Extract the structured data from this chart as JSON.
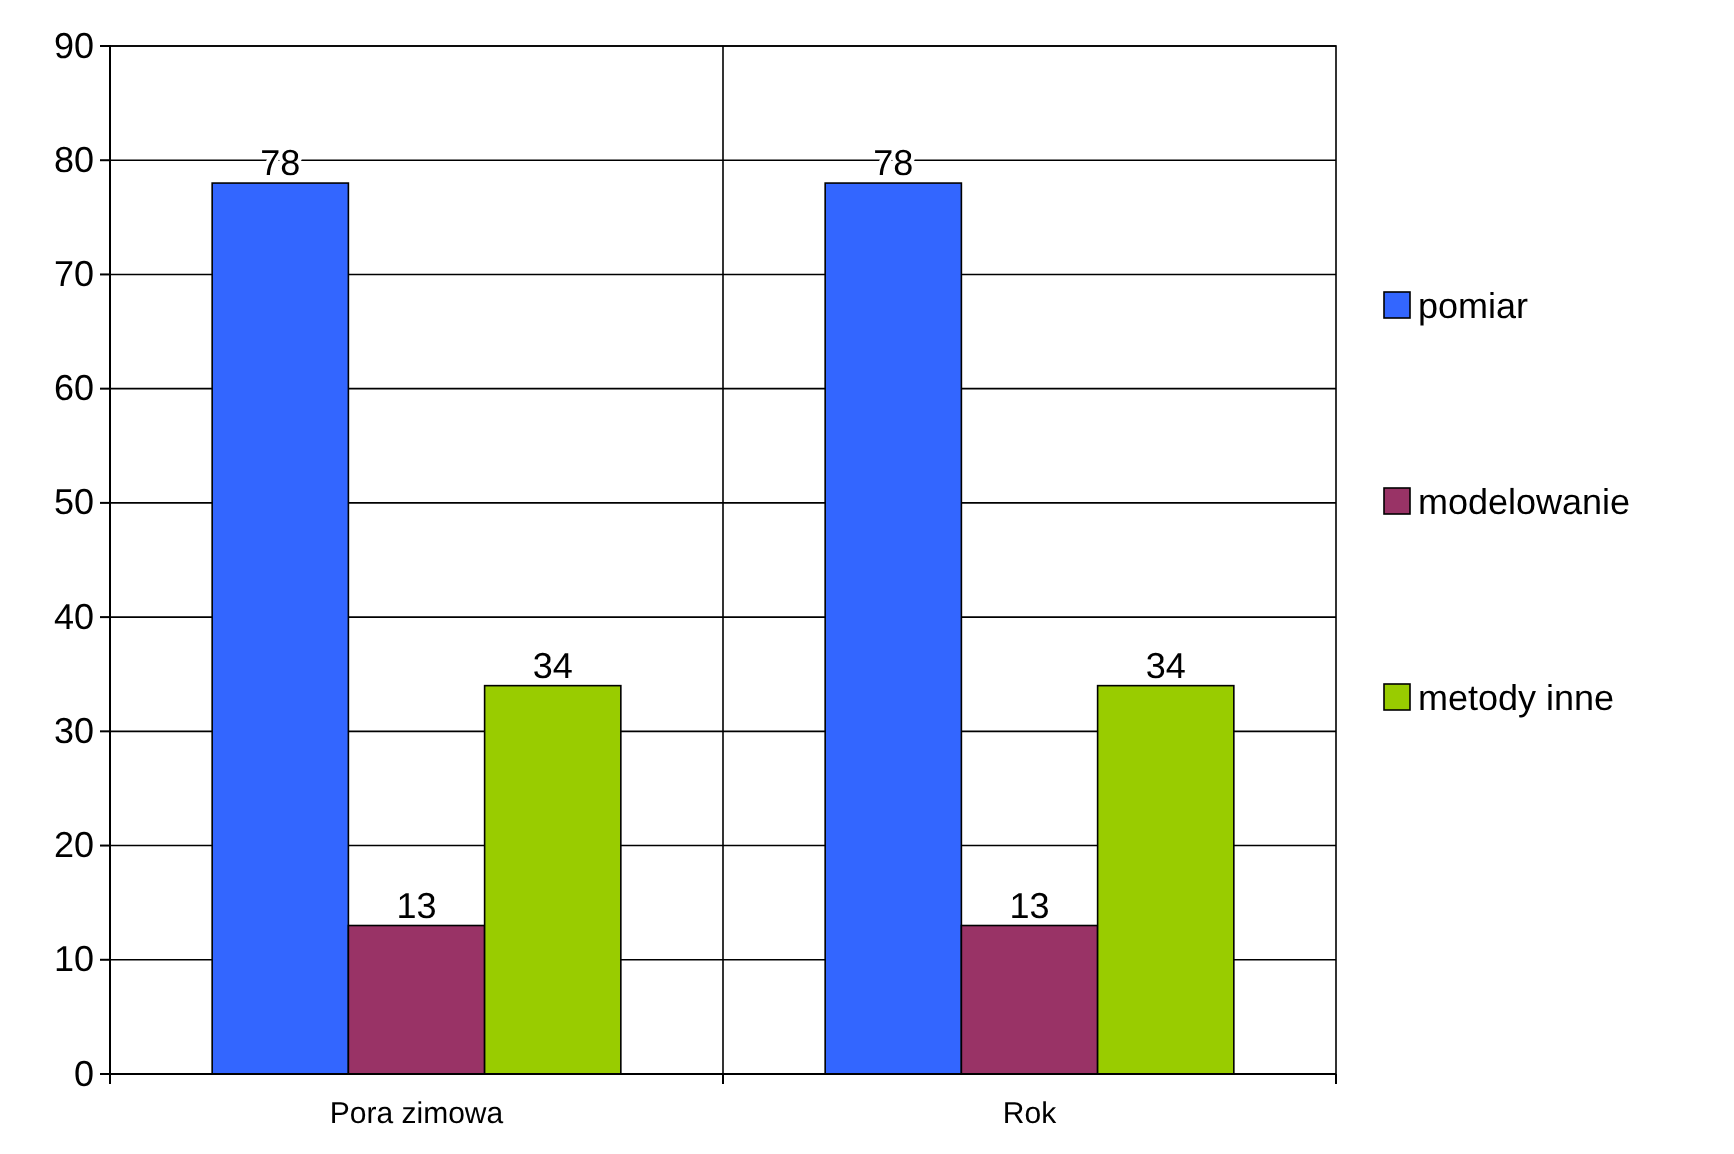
{
  "chart_data": {
    "type": "bar",
    "categories": [
      "Pora zimowa",
      "Rok"
    ],
    "series": [
      {
        "name": "pomiar",
        "color": "#3366ff",
        "values": [
          78,
          78
        ]
      },
      {
        "name": "modelowanie",
        "color": "#993366",
        "values": [
          13,
          13
        ]
      },
      {
        "name": "metody inne",
        "color": "#99cc00",
        "values": [
          34,
          34
        ]
      }
    ],
    "ylim": [
      0,
      90
    ],
    "yticks": [
      0,
      10,
      20,
      30,
      40,
      50,
      60,
      70,
      80,
      90
    ],
    "grid": true,
    "legend": "right",
    "data_labels": true
  }
}
